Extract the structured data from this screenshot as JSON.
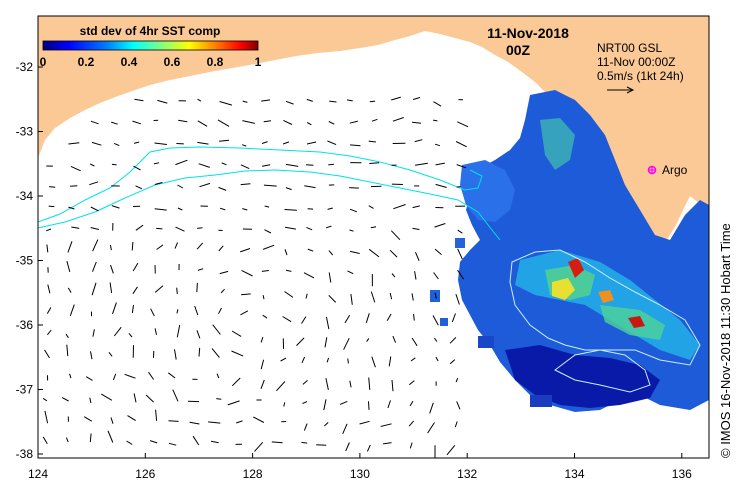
{
  "colorbar": {
    "title": "std dev of 4hr SST comp",
    "ticks": [
      "0",
      "0.2",
      "0.4",
      "0.6",
      "0.8",
      "1"
    ],
    "colors": [
      "#00007f",
      "#0000ff",
      "#0080ff",
      "#00ffff",
      "#80ff80",
      "#ffff00",
      "#ff8000",
      "#ff0000",
      "#7f0000"
    ]
  },
  "header": {
    "date": "11-Nov-2018",
    "time": "00Z"
  },
  "legend": {
    "line1": "NRT00 GSL",
    "line2": "11-Nov 00:00Z",
    "line3": "0.5m/s (1kt 24h)"
  },
  "argo": {
    "label": "Argo",
    "color": "#ff00ff"
  },
  "axes": {
    "x_ticks": [
      "124",
      "126",
      "128",
      "130",
      "132",
      "134",
      "136"
    ],
    "y_ticks": [
      "-32",
      "-33",
      "-34",
      "-35",
      "-36",
      "-37",
      "-38"
    ]
  },
  "credit": "© IMOS 16-Nov-2018 11:30 Hobart Time",
  "colors": {
    "land": "#fbc995",
    "ocean": "#ffffff",
    "current_contour": "#00e0ee"
  }
}
